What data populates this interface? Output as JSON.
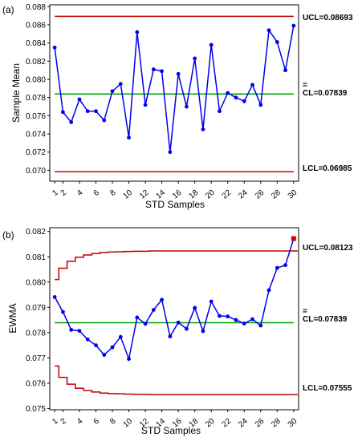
{
  "chart_data": [
    {
      "panel": "(a)",
      "type": "line",
      "ylabel": "Sample Mean",
      "xlabel": "STD Samples",
      "ylim": [
        0.0688,
        0.0882
      ],
      "xlim": [
        0.4,
        30.6
      ],
      "yticks": [
        "0.070",
        "0.072",
        "0.074",
        "0.076",
        "0.078",
        "0.080",
        "0.082",
        "0.084",
        "0.086",
        "0.088"
      ],
      "xticks": [
        "1",
        "2",
        "4",
        "6",
        "8",
        "10",
        "12",
        "14",
        "16",
        "18",
        "20",
        "22",
        "24",
        "26",
        "28",
        "30"
      ],
      "limits": {
        "ucl": {
          "value": 0.08693,
          "label": "UCL=0.08693",
          "color": "#c00000"
        },
        "cl": {
          "value": 0.07839,
          "label": "CL=0.07839",
          "bar": "=",
          "color": "#00a000"
        },
        "lcl": {
          "value": 0.06985,
          "label": "LCL=0.06985",
          "color": "#c00000"
        }
      },
      "series": [
        {
          "color": "#0000ee",
          "x": [
            1,
            2,
            3,
            4,
            5,
            6,
            7,
            8,
            9,
            10,
            11,
            12,
            13,
            14,
            15,
            16,
            17,
            18,
            19,
            20,
            21,
            22,
            23,
            24,
            25,
            26,
            27,
            28,
            29,
            30
          ],
          "values": [
            0.0835,
            0.0764,
            0.0753,
            0.0778,
            0.0765,
            0.0765,
            0.0755,
            0.0787,
            0.0795,
            0.0736,
            0.0852,
            0.0772,
            0.0811,
            0.0809,
            0.072,
            0.0806,
            0.077,
            0.0823,
            0.0745,
            0.0838,
            0.0765,
            0.0785,
            0.078,
            0.0776,
            0.0794,
            0.0772,
            0.0854,
            0.0841,
            0.081,
            0.0859
          ]
        }
      ]
    },
    {
      "panel": "(b)",
      "type": "line",
      "ylabel": "EWMA",
      "xlabel": "STD  Samples",
      "ylim": [
        0.07495,
        0.08215
      ],
      "xlim": [
        0.4,
        30.6
      ],
      "yticks": [
        "0.075",
        "0.076",
        "0.077",
        "0.078",
        "0.079",
        "0.080",
        "0.081",
        "0.082"
      ],
      "xticks": [
        "1",
        "2",
        "4",
        "6",
        "8",
        "10",
        "12",
        "14",
        "16",
        "18",
        "20",
        "22",
        "24",
        "26",
        "28",
        "30"
      ],
      "limits": {
        "ucl": {
          "value": 0.08123,
          "label": "UCL=0.08123",
          "color": "#c00000"
        },
        "cl": {
          "value": 0.07839,
          "label": "CL=0.07839",
          "bar": "=",
          "color": "#00a000"
        },
        "lcl": {
          "value": 0.07555,
          "label": "LCL=0.07555",
          "color": "#c00000"
        }
      },
      "ucl_steps": [
        0.0801,
        0.08055,
        0.08082,
        0.08098,
        0.08107,
        0.08113,
        0.08117,
        0.08119,
        0.0812,
        0.08121,
        0.08122,
        0.08122,
        0.08123,
        0.08123,
        0.08123,
        0.08123,
        0.08123,
        0.08123,
        0.08123,
        0.08123,
        0.08123,
        0.08123,
        0.08123,
        0.08123,
        0.08123,
        0.08123,
        0.08123,
        0.08123,
        0.08123,
        0.08123
      ],
      "lcl_steps": [
        0.07668,
        0.07623,
        0.07596,
        0.0758,
        0.07571,
        0.07565,
        0.07561,
        0.07559,
        0.07558,
        0.07557,
        0.07556,
        0.07556,
        0.07555,
        0.07555,
        0.07555,
        0.07555,
        0.07555,
        0.07555,
        0.07555,
        0.07555,
        0.07555,
        0.07555,
        0.07555,
        0.07555,
        0.07555,
        0.07555,
        0.07555,
        0.07555,
        0.07555,
        0.07555
      ],
      "series": [
        {
          "color": "#0000ee",
          "x": [
            1,
            2,
            3,
            4,
            5,
            6,
            7,
            8,
            9,
            10,
            11,
            12,
            13,
            14,
            15,
            16,
            17,
            18,
            19,
            20,
            21,
            22,
            23,
            24,
            25,
            26,
            27,
            28,
            29,
            30
          ],
          "values": [
            0.07941,
            0.07882,
            0.07811,
            0.07807,
            0.07773,
            0.0775,
            0.07712,
            0.07742,
            0.07783,
            0.07696,
            0.0786,
            0.07835,
            0.0789,
            0.0793,
            0.07785,
            0.0784,
            0.07815,
            0.07898,
            0.07806,
            0.07923,
            0.07866,
            0.07864,
            0.0785,
            0.07836,
            0.07853,
            0.07828,
            0.07968,
            0.08056,
            0.08067,
            0.08172
          ],
          "out_of_control_index": 29,
          "out_of_control_color": "#dd0000"
        }
      ]
    }
  ]
}
